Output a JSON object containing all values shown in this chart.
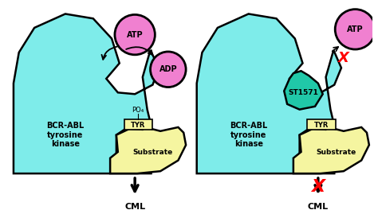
{
  "bg_color": "#ffffff",
  "cyan_color": "#7EECEA",
  "yellow_color": "#F5F5A0",
  "pink_color": "#F080D0",
  "teal_color": "#20C8A8",
  "red_color": "#FF0000",
  "black": "#000000",
  "text_bcrabl": "BCR-ABL\ntyrosine\nkinase",
  "text_substrate": "Substrate",
  "text_tyr": "TYR",
  "text_po4": "PO₄",
  "text_atp": "ATP",
  "text_adp": "ADP",
  "text_cml": "CML",
  "text_st1571": "ST1571"
}
